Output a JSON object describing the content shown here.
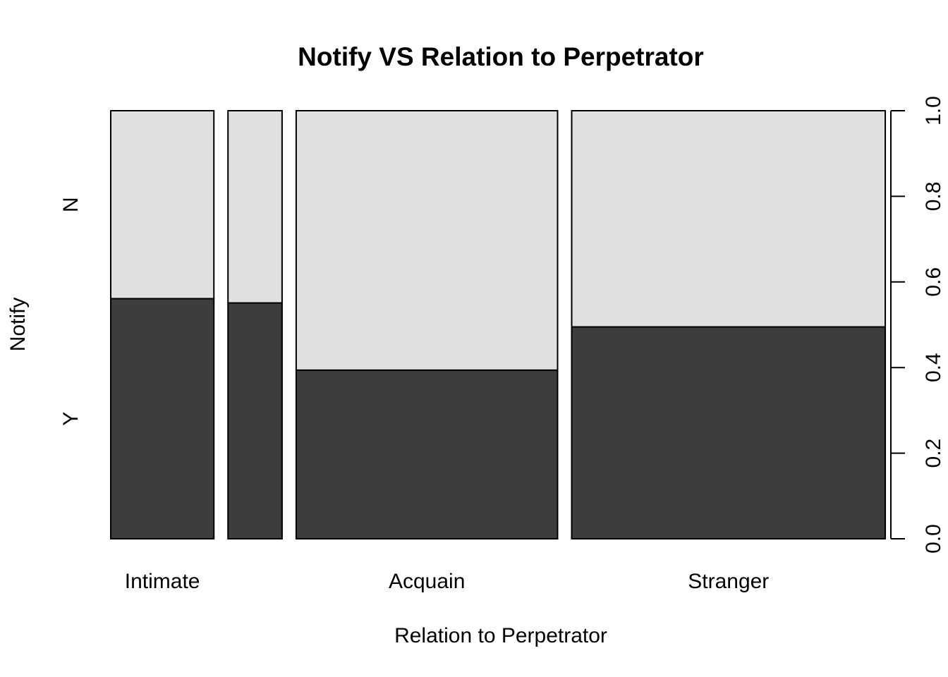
{
  "chart_data": {
    "type": "mosaic",
    "title": "Notify VS Relation to Perpetrator",
    "xlabel": "Relation to Perpetrator",
    "ylabel": "Notify",
    "categories": [
      "Intimate",
      "",
      "Acquain",
      "Stranger"
    ],
    "category_widths": [
      0.1398,
      0.0733,
      0.3543,
      0.425
    ],
    "y_levels": [
      "Y",
      "N"
    ],
    "proportions": {
      "Y": [
        0.561,
        0.551,
        0.394,
        0.495
      ],
      "N": [
        0.439,
        0.449,
        0.606,
        0.505
      ]
    },
    "right_axis": {
      "ticks": [
        "0.0",
        "0.2",
        "0.4",
        "0.6",
        "0.8",
        "1.0"
      ],
      "range": [
        0,
        1
      ]
    },
    "colors": {
      "Y": "#3d3d3d",
      "N": "#e0e0e0",
      "border": "#000000"
    },
    "grid": false
  }
}
